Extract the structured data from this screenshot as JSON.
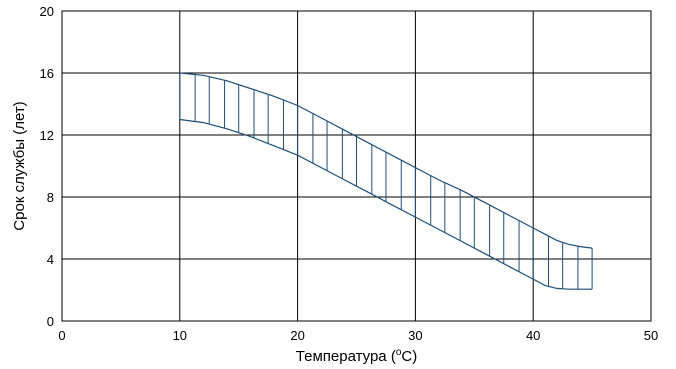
{
  "chart_data": {
    "type": "area",
    "xlabel": "Температура (",
    "xlabel_sup": "o",
    "xlabel_suffix": "C)",
    "ylabel": "Срок службы (лет)",
    "xlim": [
      0,
      50
    ],
    "ylim": [
      0,
      20
    ],
    "xticks": [
      "0",
      "10",
      "20",
      "30",
      "40",
      "50"
    ],
    "yticks": [
      "0",
      "4",
      "8",
      "12",
      "16",
      "20"
    ],
    "grid": true,
    "series": [
      {
        "role": "upper",
        "x": [
          10,
          12,
          14,
          16,
          18,
          20,
          22,
          24,
          26,
          28,
          30,
          32,
          34,
          36,
          38,
          40,
          41,
          42,
          43,
          44,
          45
        ],
        "y": [
          16.0,
          15.85,
          15.5,
          15.0,
          14.5,
          13.9,
          13.1,
          12.3,
          11.5,
          10.7,
          9.9,
          9.1,
          8.4,
          7.6,
          6.8,
          6.0,
          5.6,
          5.2,
          4.95,
          4.8,
          4.7
        ]
      },
      {
        "role": "lower",
        "x": [
          10,
          12,
          14,
          16,
          18,
          20,
          22,
          24,
          26,
          28,
          30,
          32,
          34,
          36,
          38,
          40,
          41,
          42,
          43,
          44,
          45
        ],
        "y": [
          13.0,
          12.8,
          12.4,
          11.9,
          11.3,
          10.7,
          9.9,
          9.1,
          8.3,
          7.5,
          6.7,
          5.9,
          5.1,
          4.3,
          3.5,
          2.7,
          2.3,
          2.1,
          2.05,
          2.05,
          2.05
        ]
      }
    ],
    "hatch_x": [
      10,
      11.3,
      12.5,
      13.8,
      15,
      16.3,
      17.5,
      18.8,
      20,
      21.3,
      22.5,
      23.8,
      25,
      26.3,
      27.5,
      28.8,
      30,
      31.3,
      32.5,
      33.8,
      35,
      36.3,
      37.5,
      38.8,
      40,
      41.3,
      42.5,
      43.8,
      45
    ],
    "band_color": "#1f4e79"
  }
}
